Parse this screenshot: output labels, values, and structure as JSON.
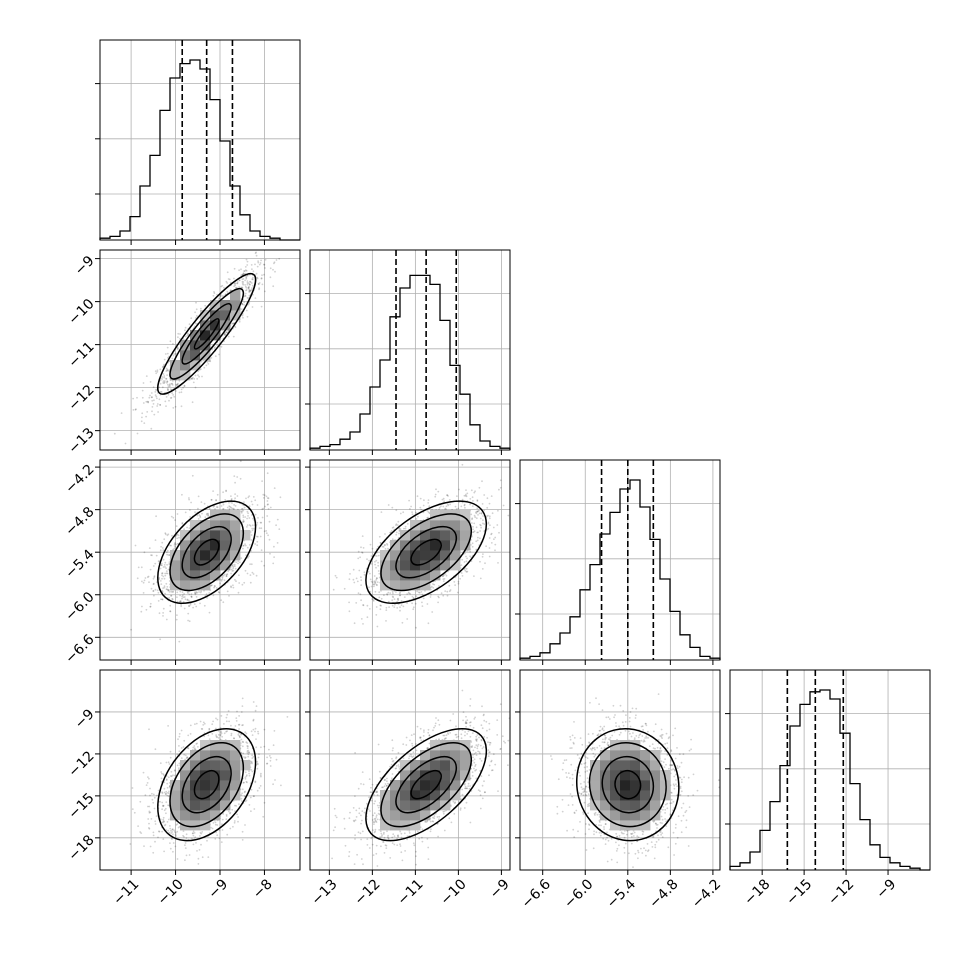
{
  "chart_data": {
    "type": "corner",
    "title": "",
    "grid": true,
    "parameters": [
      {
        "index": 0,
        "range": [
          -11.7,
          -7.2
        ],
        "ticks": [
          -11,
          -10,
          -9,
          -8
        ],
        "tick_labels": [
          "−11",
          "−10",
          "−9",
          "−8"
        ],
        "quantiles": [
          -9.85,
          -9.3,
          -8.72
        ],
        "hist": [
          0.01,
          0.02,
          0.05,
          0.13,
          0.3,
          0.47,
          0.72,
          0.9,
          0.98,
          1.0,
          0.95,
          0.78,
          0.55,
          0.3,
          0.14,
          0.05,
          0.02,
          0.01,
          0.0,
          0.0
        ]
      },
      {
        "index": 1,
        "range": [
          -13.45,
          -8.8
        ],
        "ticks": [
          -13,
          -12,
          -11,
          -10,
          -9
        ],
        "tick_labels": [
          "−13",
          "−12",
          "−11",
          "−10",
          "−9"
        ],
        "quantiles": [
          -11.45,
          -10.75,
          -10.05
        ],
        "hist": [
          0.01,
          0.02,
          0.03,
          0.06,
          0.1,
          0.2,
          0.35,
          0.5,
          0.74,
          0.9,
          0.97,
          0.97,
          0.92,
          0.72,
          0.47,
          0.31,
          0.14,
          0.05,
          0.02,
          0.01
        ]
      },
      {
        "index": 2,
        "range": [
          -6.92,
          -4.1
        ],
        "ticks": [
          -6.6,
          -6.0,
          -5.4,
          -4.8,
          -4.2
        ],
        "tick_labels": [
          "−6.6",
          "−6.0",
          "−5.4",
          "−4.8",
          "−4.2"
        ],
        "quantiles": [
          -5.77,
          -5.4,
          -5.04
        ],
        "hist": [
          0.01,
          0.02,
          0.04,
          0.09,
          0.15,
          0.24,
          0.39,
          0.53,
          0.7,
          0.82,
          0.95,
          1.0,
          0.85,
          0.67,
          0.45,
          0.27,
          0.14,
          0.07,
          0.02,
          0.01
        ]
      },
      {
        "index": 3,
        "range": [
          -20.3,
          -6.0
        ],
        "ticks": [
          -18,
          -15,
          -12,
          -9
        ],
        "tick_labels": [
          "−18",
          "−15",
          "−12",
          "−9"
        ],
        "quantiles": [
          -16.2,
          -14.2,
          -12.2
        ],
        "hist": [
          0.02,
          0.04,
          0.1,
          0.22,
          0.38,
          0.58,
          0.8,
          0.92,
          0.99,
          1.0,
          0.95,
          0.76,
          0.48,
          0.28,
          0.14,
          0.07,
          0.04,
          0.02,
          0.01,
          0.0
        ]
      }
    ],
    "pairs": [
      {
        "x": 0,
        "y": 1,
        "center": [
          -9.3,
          -10.75
        ],
        "std": [
          0.55,
          0.7
        ],
        "corr": 0.9,
        "n_points": 1700
      },
      {
        "x": 0,
        "y": 2,
        "center": [
          -9.3,
          -5.4
        ],
        "std": [
          0.55,
          0.36
        ],
        "corr": 0.5,
        "n_points": 1700
      },
      {
        "x": 1,
        "y": 2,
        "center": [
          -10.75,
          -5.4
        ],
        "std": [
          0.7,
          0.36
        ],
        "corr": 0.55,
        "n_points": 1700
      },
      {
        "x": 0,
        "y": 3,
        "center": [
          -9.3,
          -14.2
        ],
        "std": [
          0.55,
          2.0
        ],
        "corr": 0.4,
        "n_points": 1700
      },
      {
        "x": 1,
        "y": 3,
        "center": [
          -10.75,
          -14.2
        ],
        "std": [
          0.7,
          2.0
        ],
        "corr": 0.6,
        "n_points": 1700
      },
      {
        "x": 2,
        "y": 3,
        "center": [
          -5.4,
          -14.2
        ],
        "std": [
          0.36,
          2.0
        ],
        "corr": -0.05,
        "n_points": 1700
      }
    ],
    "contour_levels_sigma": [
      0.5,
      1.0,
      1.5,
      2.0
    ]
  }
}
